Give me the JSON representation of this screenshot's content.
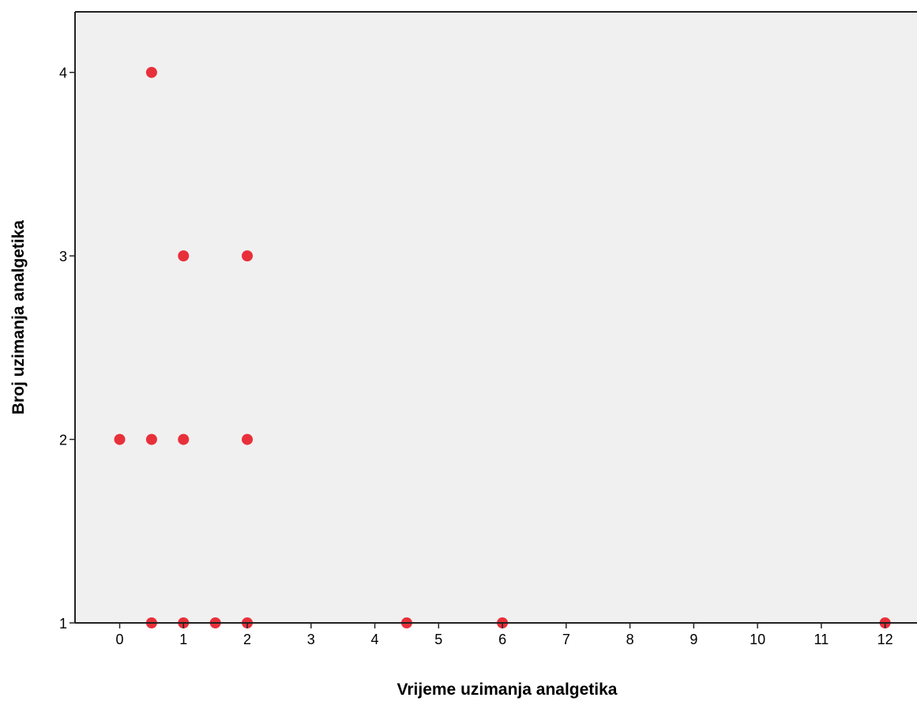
{
  "chart_data": {
    "type": "scatter",
    "xlabel": "Vrijeme uzimanja analgetika",
    "ylabel": "Broj uzimanja analgetika",
    "xlim": [
      -0.7,
      12.5
    ],
    "ylim": [
      1,
      4.33
    ],
    "x_ticks": [
      0,
      1,
      2,
      3,
      4,
      5,
      6,
      7,
      8,
      9,
      10,
      11,
      12
    ],
    "y_ticks": [
      1,
      2,
      3,
      4
    ],
    "grid": false,
    "legend": "none",
    "point_color": "#e8303a",
    "plot_background": "#f0f0f0",
    "points": [
      {
        "x": 0.5,
        "y": 4
      },
      {
        "x": 1,
        "y": 3
      },
      {
        "x": 2,
        "y": 3
      },
      {
        "x": 0,
        "y": 2
      },
      {
        "x": 0.5,
        "y": 2
      },
      {
        "x": 1,
        "y": 2
      },
      {
        "x": 2,
        "y": 2
      },
      {
        "x": 0.5,
        "y": 1
      },
      {
        "x": 1,
        "y": 1
      },
      {
        "x": 1.5,
        "y": 1
      },
      {
        "x": 2,
        "y": 1
      },
      {
        "x": 4.5,
        "y": 1
      },
      {
        "x": 6,
        "y": 1
      },
      {
        "x": 12,
        "y": 1
      }
    ]
  }
}
